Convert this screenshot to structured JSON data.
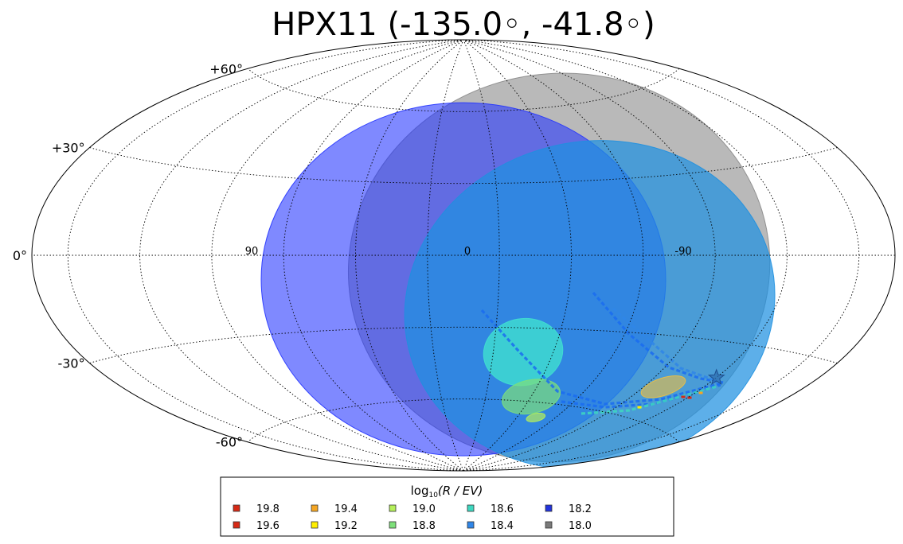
{
  "chart_data": {
    "type": "scatter",
    "projection": "aitoff",
    "title": "HPX11 (-135.0◦, -41.8◦)",
    "grid": true,
    "lat_labels": [
      "+60°",
      "+30°",
      "0°",
      "-30°",
      "-60°"
    ],
    "lat_values": [
      60,
      30,
      0,
      -30,
      -60
    ],
    "lon_labels": [
      "90",
      "0",
      "-90"
    ],
    "lon_values": [
      90,
      0,
      -90
    ],
    "legend": {
      "title": "log",
      "title_sub": "10",
      "title_rest": "(R / EV)",
      "placement": "bottom",
      "entries": [
        {
          "label": "19.8",
          "color": "#d62a16"
        },
        {
          "label": "19.6",
          "color": "#d62a16"
        },
        {
          "label": "19.4",
          "color": "#f5a623"
        },
        {
          "label": "19.2",
          "color": "#ffee00"
        },
        {
          "label": "19.0",
          "color": "#b5f05a"
        },
        {
          "label": "18.8",
          "color": "#7ee07a"
        },
        {
          "label": "18.6",
          "color": "#3ed8c0"
        },
        {
          "label": "18.4",
          "color": "#2f86e8"
        },
        {
          "label": "18.2",
          "color": "#2233dd"
        },
        {
          "label": "18.0",
          "color": "#7a7a7a"
        }
      ]
    },
    "regions": [
      {
        "energy": "18.0",
        "lon": -40,
        "lat": -5,
        "color": "#8a8a8a",
        "opacity": 0.6
      },
      {
        "energy": "18.2",
        "lon": 0,
        "lat": -10,
        "color": "#2233ff",
        "opacity": 0.58
      },
      {
        "energy": "18.4",
        "lon": -55,
        "lat": -20,
        "color": "#1e90e0",
        "opacity": 0.72
      },
      {
        "energy": "18.6",
        "lon": -30,
        "lat": -40,
        "color": "#40e0d0",
        "opacity": 0.8
      },
      {
        "energy": "18.8",
        "lon": -45,
        "lat": -58,
        "color": "#7ee07a",
        "opacity": 0.7
      },
      {
        "energy": "19.0",
        "lon": -60,
        "lat": -66,
        "color": "#b5f05a",
        "opacity": 0.7
      },
      {
        "energy": "19.4",
        "lon": -115,
        "lat": -48,
        "color": "#f0c040",
        "opacity": 0.6
      }
    ],
    "target": {
      "lon": -135.0,
      "lat": -41.8
    }
  }
}
